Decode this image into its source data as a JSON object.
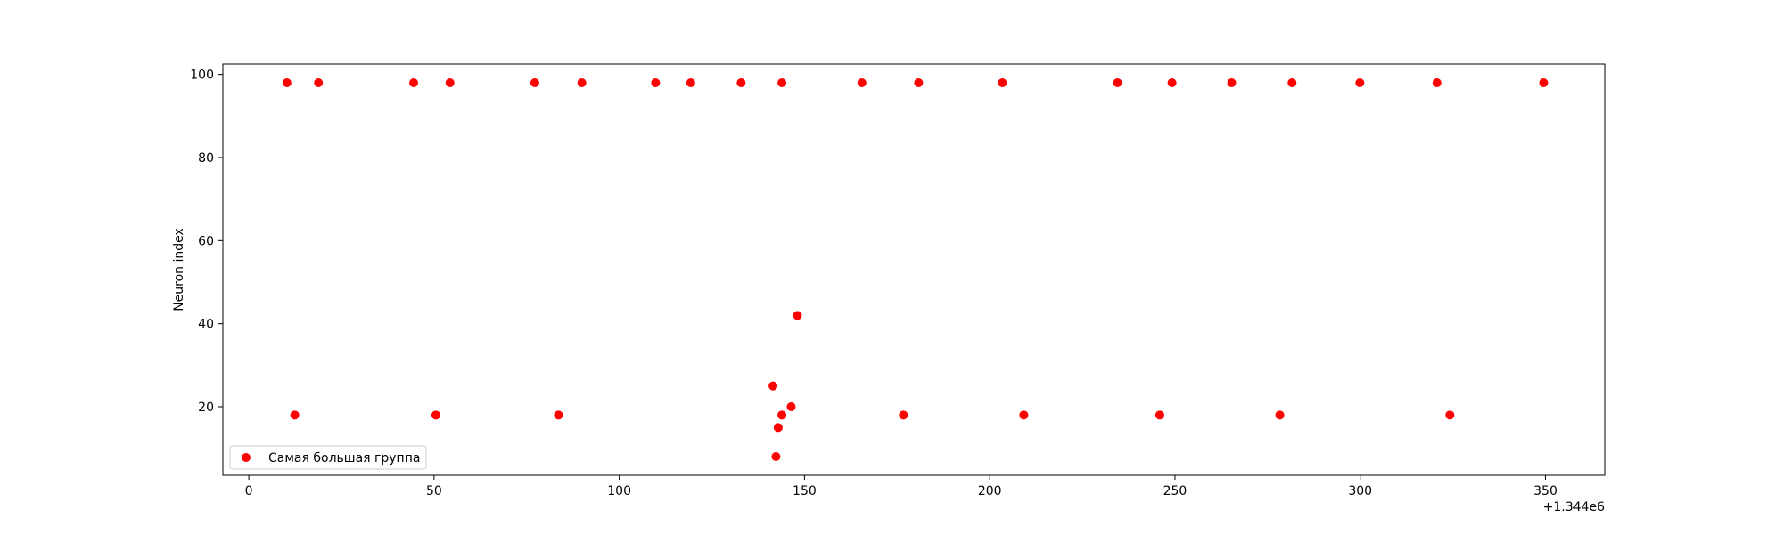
{
  "chart_data": {
    "type": "scatter",
    "title": "",
    "xlabel": "",
    "ylabel": "Neuron index",
    "x_offset_label": "+1.344e6",
    "xlim": [
      -7,
      366
    ],
    "ylim": [
      3.5,
      102.5
    ],
    "xticks": [
      0,
      50,
      100,
      150,
      200,
      250,
      300,
      350
    ],
    "yticks": [
      20,
      40,
      60,
      80,
      100
    ],
    "grid": false,
    "legend_position": "lower-left",
    "series": [
      {
        "name": "Самая большая группа",
        "color": "#ff0000",
        "points": [
          {
            "x": 10.3,
            "y": 98
          },
          {
            "x": 18.8,
            "y": 98
          },
          {
            "x": 44.5,
            "y": 98
          },
          {
            "x": 54.3,
            "y": 98
          },
          {
            "x": 77.2,
            "y": 98
          },
          {
            "x": 89.9,
            "y": 98
          },
          {
            "x": 109.8,
            "y": 98
          },
          {
            "x": 119.3,
            "y": 98
          },
          {
            "x": 132.9,
            "y": 98
          },
          {
            "x": 143.9,
            "y": 98
          },
          {
            "x": 165.5,
            "y": 98
          },
          {
            "x": 180.8,
            "y": 98
          },
          {
            "x": 203.4,
            "y": 98
          },
          {
            "x": 234.5,
            "y": 98
          },
          {
            "x": 249.2,
            "y": 98
          },
          {
            "x": 265.3,
            "y": 98
          },
          {
            "x": 281.6,
            "y": 98
          },
          {
            "x": 299.9,
            "y": 98
          },
          {
            "x": 320.7,
            "y": 98
          },
          {
            "x": 349.5,
            "y": 98
          },
          {
            "x": 12.4,
            "y": 18
          },
          {
            "x": 50.5,
            "y": 18
          },
          {
            "x": 83.6,
            "y": 18
          },
          {
            "x": 176.7,
            "y": 18
          },
          {
            "x": 209.2,
            "y": 18
          },
          {
            "x": 245.9,
            "y": 18
          },
          {
            "x": 278.3,
            "y": 18
          },
          {
            "x": 324.2,
            "y": 18
          },
          {
            "x": 148.1,
            "y": 42
          },
          {
            "x": 141.5,
            "y": 25
          },
          {
            "x": 146.4,
            "y": 20
          },
          {
            "x": 143.9,
            "y": 18
          },
          {
            "x": 142.9,
            "y": 15
          },
          {
            "x": 142.3,
            "y": 8
          }
        ]
      }
    ]
  }
}
